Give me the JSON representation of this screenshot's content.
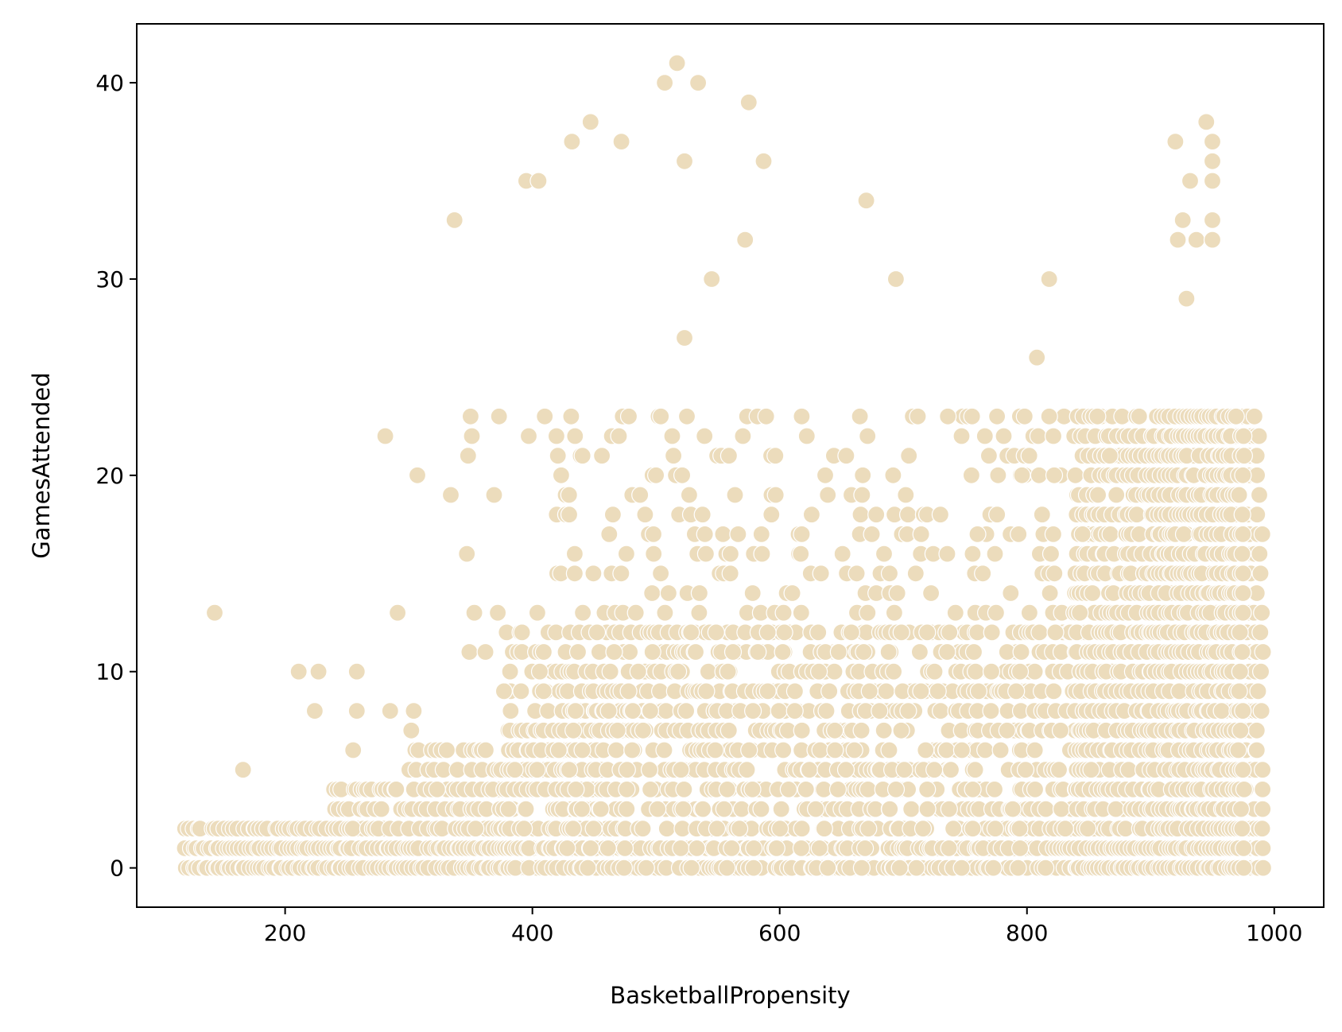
{
  "chart_data": {
    "type": "scatter",
    "title": "",
    "xlabel": "BasketballPropensity",
    "ylabel": "GamesAttended",
    "xlim": [
      80,
      1040
    ],
    "ylim": [
      -2,
      43
    ],
    "x_ticks": [
      200,
      400,
      600,
      800,
      1000
    ],
    "y_ticks": [
      0,
      10,
      20,
      30,
      40
    ],
    "grid": false,
    "legend": "none",
    "marker_color": "#ecdcbc",
    "marker_edge_color": "#ffffff",
    "outliers": [
      [
        143,
        13
      ],
      [
        166,
        5
      ],
      [
        211,
        10
      ],
      [
        224,
        8
      ],
      [
        227,
        10
      ],
      [
        255,
        6
      ],
      [
        258,
        10
      ],
      [
        258,
        8
      ],
      [
        281,
        22
      ],
      [
        285,
        8
      ],
      [
        291,
        13
      ],
      [
        302,
        7
      ],
      [
        304,
        8
      ],
      [
        307,
        20
      ],
      [
        334,
        19
      ],
      [
        337,
        33
      ],
      [
        347,
        16
      ],
      [
        350,
        23
      ],
      [
        351,
        22
      ],
      [
        348,
        21
      ],
      [
        349,
        11
      ],
      [
        353,
        13
      ],
      [
        362,
        11
      ],
      [
        369,
        19
      ],
      [
        372,
        13
      ],
      [
        373,
        23
      ],
      [
        377,
        9
      ],
      [
        395,
        35
      ],
      [
        397,
        22
      ],
      [
        404,
        13
      ],
      [
        405,
        35
      ],
      [
        406,
        10
      ],
      [
        409,
        9
      ],
      [
        410,
        23
      ],
      [
        432,
        37
      ],
      [
        447,
        38
      ],
      [
        472,
        37
      ],
      [
        478,
        23
      ],
      [
        476,
        16
      ],
      [
        507,
        40
      ],
      [
        517,
        41
      ],
      [
        523,
        27
      ],
      [
        523,
        36
      ],
      [
        534,
        40
      ],
      [
        545,
        30
      ],
      [
        575,
        39
      ],
      [
        572,
        32
      ],
      [
        587,
        36
      ],
      [
        559,
        21
      ],
      [
        670,
        34
      ],
      [
        694,
        30
      ],
      [
        702,
        19
      ],
      [
        710,
        15
      ],
      [
        730,
        18
      ],
      [
        736,
        23
      ],
      [
        760,
        17
      ],
      [
        796,
        20
      ],
      [
        808,
        26
      ],
      [
        818,
        30
      ],
      [
        818,
        23
      ],
      [
        822,
        20
      ],
      [
        845,
        17
      ],
      [
        857,
        23
      ],
      [
        867,
        21
      ],
      [
        920,
        37
      ],
      [
        926,
        33
      ],
      [
        929,
        29
      ],
      [
        922,
        32
      ],
      [
        932,
        35
      ],
      [
        937,
        32
      ],
      [
        945,
        38
      ],
      [
        950,
        37
      ],
      [
        950,
        36
      ],
      [
        950,
        35
      ],
      [
        950,
        33
      ],
      [
        950,
        32
      ]
    ],
    "density_bands": [
      {
        "x_range": [
          120,
          280
        ],
        "y_max": 2,
        "density": 0.7
      },
      {
        "x_range": [
          240,
          380
        ],
        "y_max": 4,
        "density": 0.55
      },
      {
        "x_range": [
          300,
          460
        ],
        "y_max": 6,
        "density": 0.45
      },
      {
        "x_range": [
          380,
          880
        ],
        "y_max": 12,
        "density": 0.4
      },
      {
        "x_range": [
          420,
          880
        ],
        "y_max": 23,
        "density": 0.13
      },
      {
        "x_range": [
          840,
          990
        ],
        "y_max": 23,
        "density": 0.55
      },
      {
        "x_range": [
          900,
          975
        ],
        "y_max": 23,
        "density": 0.75
      }
    ]
  }
}
